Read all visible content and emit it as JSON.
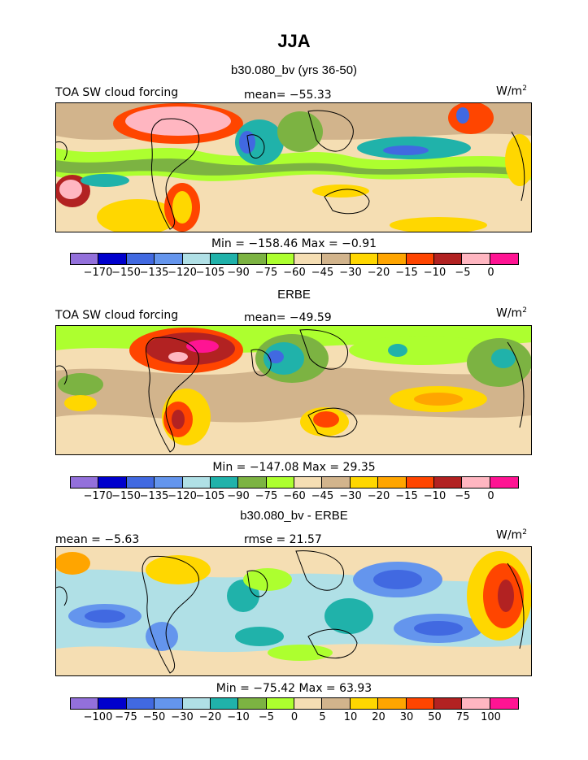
{
  "figure": {
    "title": "JJA",
    "units_base": "W/m",
    "units_exp": "2"
  },
  "chart_data": [
    {
      "type": "heatmap",
      "title": "b30.080_bv (yrs 36-50)",
      "left_label": "TOA SW cloud forcing",
      "stat_label": "mean= −55.33",
      "units": "W/m2",
      "min_max": "Min = −158.46 Max =  −0.91",
      "colorbar_ticks": [
        "−170",
        "−150",
        "−135",
        "−120",
        "−105",
        "−90",
        "−75",
        "−60",
        "−45",
        "−30",
        "−20",
        "−15",
        "−10",
        "−5",
        "0"
      ],
      "colorbar_colors": [
        "#9370db",
        "#0000cd",
        "#4169e1",
        "#6495ed",
        "#b0e0e6",
        "#20b2aa",
        "#7cb342",
        "#adff2f",
        "#f5deb3",
        "#d2b48c",
        "#ffd700",
        "#ffa500",
        "#ff4500",
        "#b22222",
        "#ffb6c1",
        "#ff1493"
      ]
    },
    {
      "type": "heatmap",
      "title": "ERBE",
      "left_label": "TOA SW cloud forcing",
      "stat_label": "mean= −49.59",
      "units": "W/m2",
      "min_max": "Min = −147.08 Max =  29.35",
      "colorbar_ticks": [
        "−170",
        "−150",
        "−135",
        "−120",
        "−105",
        "−90",
        "−75",
        "−60",
        "−45",
        "−30",
        "−20",
        "−15",
        "−10",
        "−5",
        "0"
      ],
      "colorbar_colors": [
        "#9370db",
        "#0000cd",
        "#4169e1",
        "#6495ed",
        "#b0e0e6",
        "#20b2aa",
        "#7cb342",
        "#adff2f",
        "#f5deb3",
        "#d2b48c",
        "#ffd700",
        "#ffa500",
        "#ff4500",
        "#b22222",
        "#ffb6c1",
        "#ff1493"
      ]
    },
    {
      "type": "heatmap",
      "title": "b30.080_bv - ERBE",
      "left_label": "mean =  −5.63",
      "stat_label": "rmse =  21.57",
      "units": "W/m2",
      "min_max": "Min = −75.42 Max =  63.93",
      "colorbar_ticks": [
        "−100",
        "−75",
        "−50",
        "−30",
        "−20",
        "−10",
        "−5",
        "0",
        "5",
        "10",
        "20",
        "30",
        "50",
        "75",
        "100"
      ],
      "colorbar_colors": [
        "#9370db",
        "#0000cd",
        "#4169e1",
        "#6495ed",
        "#b0e0e6",
        "#20b2aa",
        "#7cb342",
        "#adff2f",
        "#f5deb3",
        "#d2b48c",
        "#ffd700",
        "#ffa500",
        "#ff4500",
        "#b22222",
        "#ffb6c1",
        "#ff1493"
      ]
    }
  ]
}
